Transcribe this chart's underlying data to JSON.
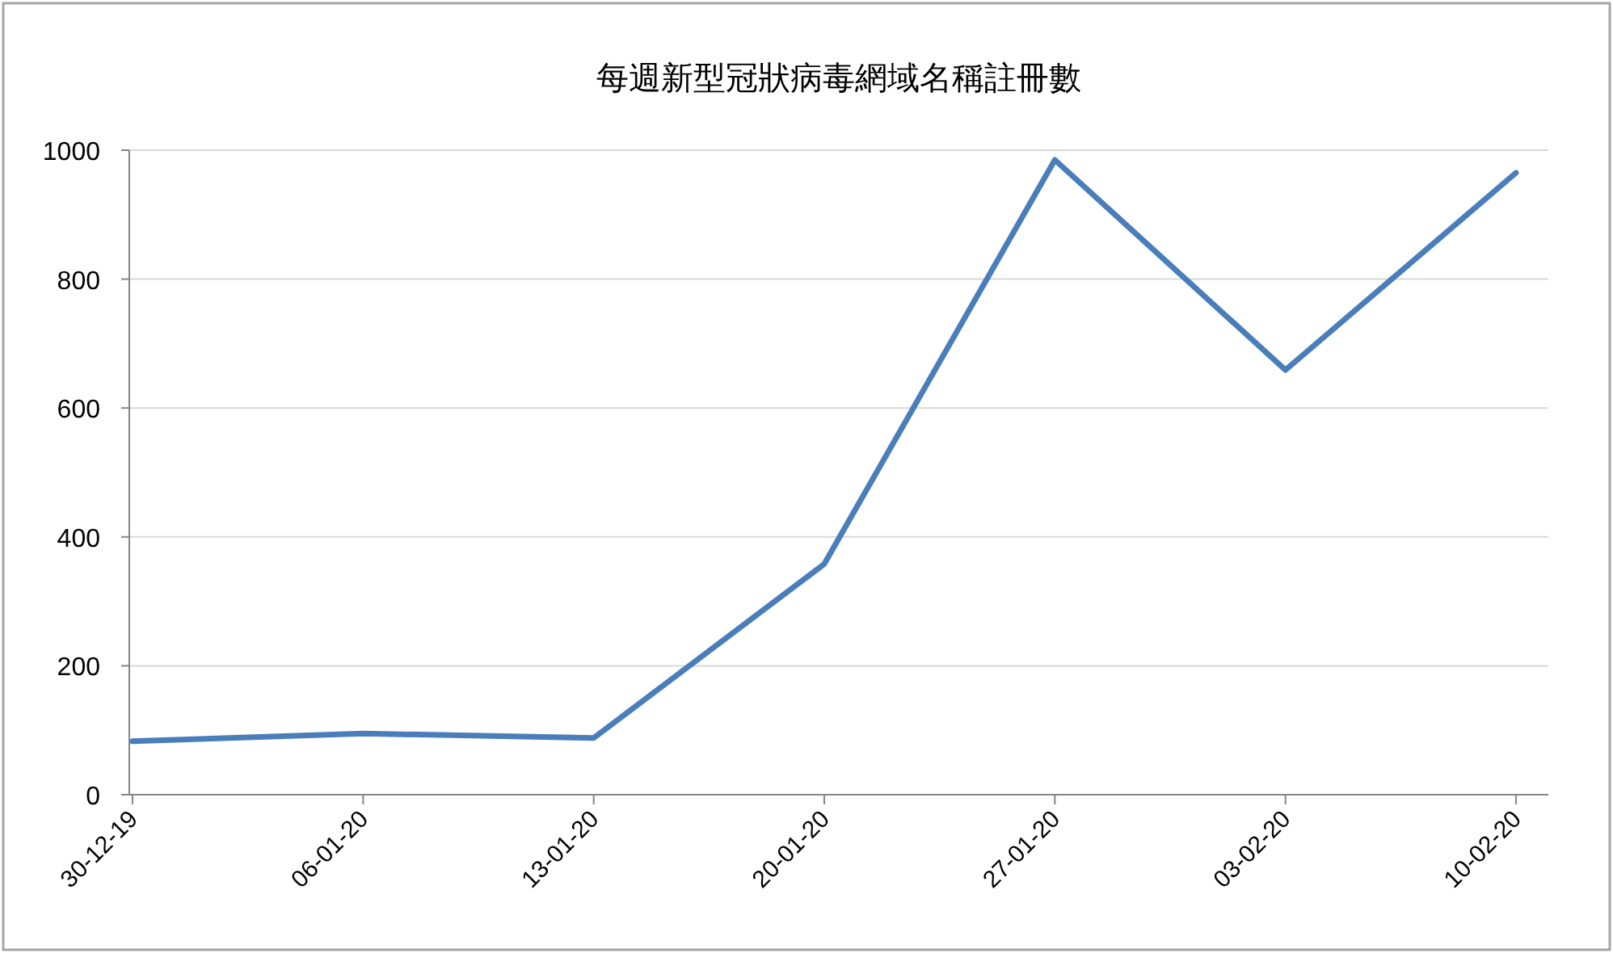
{
  "chart_data": {
    "type": "line",
    "title": "每週新型冠狀病毒網域名稱註冊數",
    "categories": [
      "30-12-19",
      "06-01-20",
      "13-01-20",
      "20-01-20",
      "27-01-20",
      "03-02-20",
      "10-02-20"
    ],
    "series": [
      {
        "color": "#4a7ebb",
        "values": [
          83,
          95,
          88,
          358,
          985,
          659,
          965
        ]
      }
    ],
    "ylim": [
      0,
      1000
    ],
    "yticks": [
      0,
      200,
      400,
      600,
      800,
      1000
    ],
    "grid": "y"
  }
}
